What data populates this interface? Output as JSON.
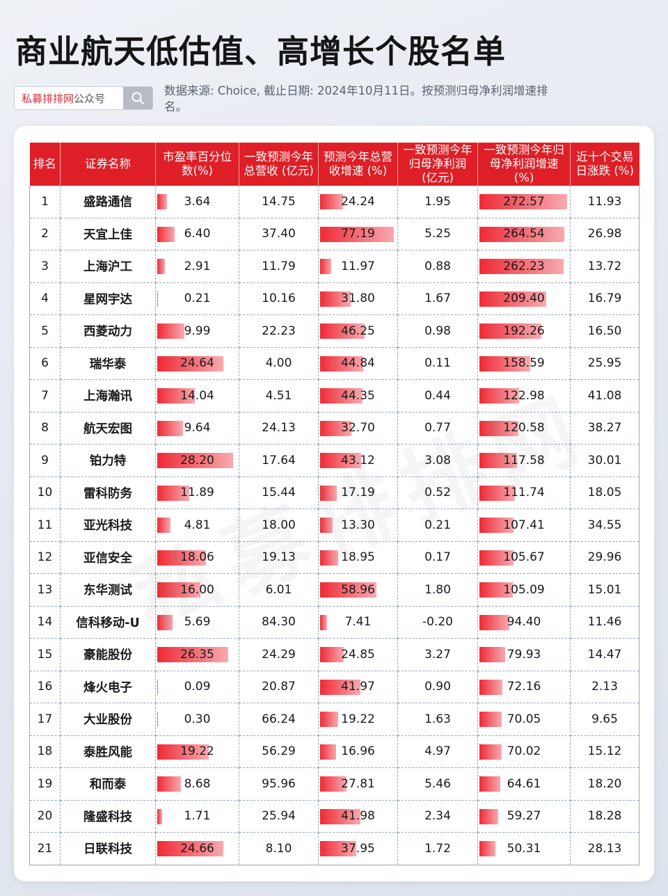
{
  "title": "商业航天低估值、高增长个股名单",
  "search": {
    "brand": "私募排排网",
    "suffix": "公众号"
  },
  "source_note": "数据来源: Choice, 截止日期: 2024年10月11日。按预测归母净利润增速排名。",
  "watermark": "私募排排网",
  "columns": [
    "排名",
    "证券名称",
    "市盈率百分位数(%)",
    "一致预测今年总营收 (亿元)",
    "预测今年总营收增速 (%)",
    "一致预测今年归母净利润 (亿元)",
    "一致预测今年归母净利润增速 (%)",
    "近十个交易日涨跌 (%)"
  ],
  "bar_max": {
    "pe": 30,
    "rev_growth": 80,
    "np_growth": 280
  },
  "rows": [
    {
      "rank": "1",
      "name": "盛路通信",
      "pe": "3.64",
      "rev": "14.75",
      "rev_growth": "24.24",
      "np": "1.95",
      "np_growth": "272.57",
      "chg": "11.93"
    },
    {
      "rank": "2",
      "name": "天宜上佳",
      "pe": "6.40",
      "rev": "37.40",
      "rev_growth": "77.19",
      "np": "5.25",
      "np_growth": "264.54",
      "chg": "26.98"
    },
    {
      "rank": "3",
      "name": "上海沪工",
      "pe": "2.91",
      "rev": "11.79",
      "rev_growth": "11.97",
      "np": "0.88",
      "np_growth": "262.23",
      "chg": "13.72"
    },
    {
      "rank": "4",
      "name": "星网宇达",
      "pe": "0.21",
      "rev": "10.16",
      "rev_growth": "31.80",
      "np": "1.67",
      "np_growth": "209.40",
      "chg": "16.79"
    },
    {
      "rank": "5",
      "name": "西菱动力",
      "pe": "9.99",
      "rev": "22.23",
      "rev_growth": "46.25",
      "np": "0.98",
      "np_growth": "192.26",
      "chg": "16.50"
    },
    {
      "rank": "6",
      "name": "瑞华泰",
      "pe": "24.64",
      "rev": "4.00",
      "rev_growth": "44.84",
      "np": "0.11",
      "np_growth": "158.59",
      "chg": "25.95"
    },
    {
      "rank": "7",
      "name": "上海瀚讯",
      "pe": "14.04",
      "rev": "4.51",
      "rev_growth": "44.35",
      "np": "0.44",
      "np_growth": "122.98",
      "chg": "41.08"
    },
    {
      "rank": "8",
      "name": "航天宏图",
      "pe": "9.64",
      "rev": "24.13",
      "rev_growth": "32.70",
      "np": "0.77",
      "np_growth": "120.58",
      "chg": "38.27"
    },
    {
      "rank": "9",
      "name": "铂力特",
      "pe": "28.20",
      "rev": "17.64",
      "rev_growth": "43.12",
      "np": "3.08",
      "np_growth": "117.58",
      "chg": "30.01"
    },
    {
      "rank": "10",
      "name": "雷科防务",
      "pe": "11.89",
      "rev": "15.44",
      "rev_growth": "17.19",
      "np": "0.52",
      "np_growth": "111.74",
      "chg": "18.05"
    },
    {
      "rank": "11",
      "name": "亚光科技",
      "pe": "4.81",
      "rev": "18.00",
      "rev_growth": "13.30",
      "np": "0.21",
      "np_growth": "107.41",
      "chg": "34.55"
    },
    {
      "rank": "12",
      "name": "亚信安全",
      "pe": "18.06",
      "rev": "19.13",
      "rev_growth": "18.95",
      "np": "0.17",
      "np_growth": "105.67",
      "chg": "29.96"
    },
    {
      "rank": "13",
      "name": "东华测试",
      "pe": "16.00",
      "rev": "6.01",
      "rev_growth": "58.96",
      "np": "1.80",
      "np_growth": "105.09",
      "chg": "15.01"
    },
    {
      "rank": "14",
      "name": "信科移动-U",
      "pe": "5.69",
      "rev": "84.30",
      "rev_growth": "7.41",
      "np": "-0.20",
      "np_growth": "94.40",
      "chg": "11.46"
    },
    {
      "rank": "15",
      "name": "豪能股份",
      "pe": "26.35",
      "rev": "24.29",
      "rev_growth": "24.85",
      "np": "3.27",
      "np_growth": "79.93",
      "chg": "14.47"
    },
    {
      "rank": "16",
      "name": "烽火电子",
      "pe": "0.09",
      "rev": "20.87",
      "rev_growth": "41.97",
      "np": "0.90",
      "np_growth": "72.16",
      "chg": "2.13"
    },
    {
      "rank": "17",
      "name": "大业股份",
      "pe": "0.30",
      "rev": "66.24",
      "rev_growth": "19.22",
      "np": "1.63",
      "np_growth": "70.05",
      "chg": "9.65"
    },
    {
      "rank": "18",
      "name": "泰胜风能",
      "pe": "19.22",
      "rev": "56.29",
      "rev_growth": "16.96",
      "np": "4.97",
      "np_growth": "70.02",
      "chg": "15.12"
    },
    {
      "rank": "19",
      "name": "和而泰",
      "pe": "8.68",
      "rev": "95.96",
      "rev_growth": "27.81",
      "np": "5.46",
      "np_growth": "64.61",
      "chg": "18.20"
    },
    {
      "rank": "20",
      "name": "隆盛科技",
      "pe": "1.71",
      "rev": "25.94",
      "rev_growth": "41.98",
      "np": "2.34",
      "np_growth": "59.27",
      "chg": "18.28"
    },
    {
      "rank": "21",
      "name": "日联科技",
      "pe": "24.66",
      "rev": "8.10",
      "rev_growth": "37.95",
      "np": "1.72",
      "np_growth": "50.31",
      "chg": "28.13"
    }
  ]
}
